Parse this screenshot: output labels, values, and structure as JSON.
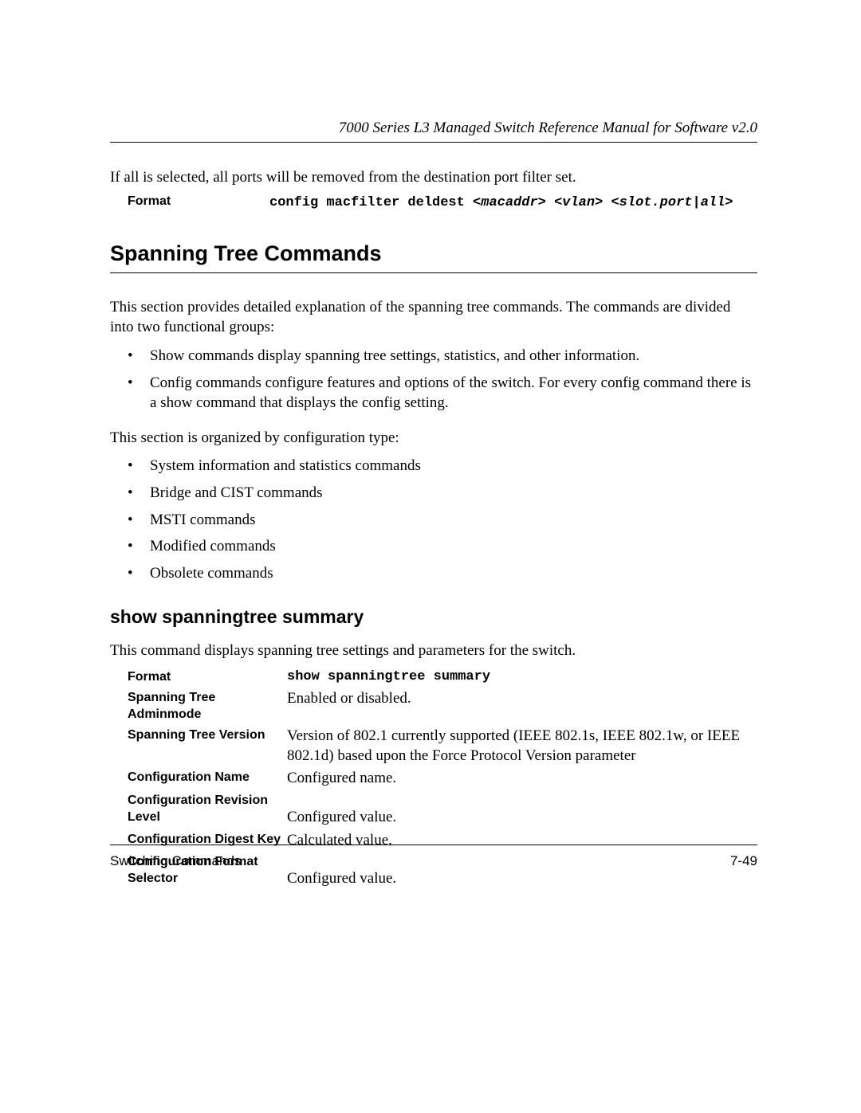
{
  "header": {
    "running_title": "7000 Series L3 Managed Switch Reference Manual for Software v2.0"
  },
  "intro_para": "If all is selected, all ports will be removed from the destination port filter set.",
  "format1": {
    "label": "Format",
    "code_plain": "config macfilter deldest ",
    "code_args": "<macaddr> <vlan> <slot.port|all>"
  },
  "section_title": "Spanning Tree Commands",
  "para1": "This section provides detailed explanation of the spanning tree commands. The commands are divided into two functional groups:",
  "bullets1": [
    "Show commands display spanning tree settings, statistics, and other information.",
    "Config commands configure features and options of the switch. For every config command there is a show command that displays the config setting."
  ],
  "para2": "This section is organized by configuration type:",
  "bullets2": [
    "System information and statistics commands",
    "Bridge and CIST commands",
    "MSTI commands",
    "Modified commands",
    "Obsolete commands"
  ],
  "subsection_title": "show spanningtree summary",
  "sub_para": "This command displays spanning tree settings and parameters for the switch.",
  "defs": {
    "format": {
      "term": "Format",
      "value": "show spanningtree summary"
    },
    "adminmode": {
      "term": "Spanning Tree Adminmode",
      "value": "Enabled or disabled."
    },
    "version": {
      "term": "Spanning Tree Version",
      "value": "Version of 802.1 currently supported (IEEE 802.1s, IEEE 802.1w, or IEEE 802.1d) based upon the Force Protocol Version parameter"
    },
    "configname": {
      "term": "Configuration Name",
      "value": "Configured name."
    },
    "revlevel": {
      "term": "Configuration Revision Level",
      "value": "Configured value."
    },
    "digestkey": {
      "term": "Configuration Digest Key",
      "value": "Calculated value."
    },
    "formatselector": {
      "term": "Configuration Format Selector",
      "value": "Configured value."
    }
  },
  "footer": {
    "left": "Switching Commands",
    "right": "7-49"
  }
}
